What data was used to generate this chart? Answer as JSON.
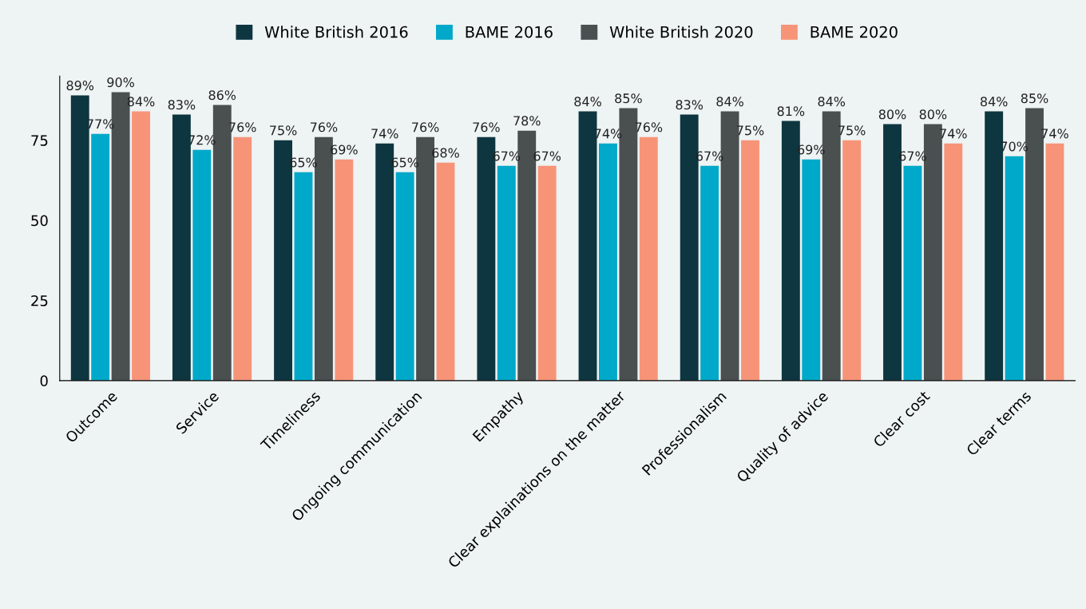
{
  "chart_data": {
    "type": "bar",
    "categories": [
      "Outcome",
      "Service",
      "Timeliness",
      "Ongoing communication",
      "Empathy",
      "Clear explainations on the matter",
      "Professionalism",
      "Quality of advice",
      "Clear cost",
      "Clear terms"
    ],
    "series": [
      {
        "name": "White British 2016",
        "color": "#0e3640",
        "values": [
          89,
          83,
          75,
          74,
          76,
          84,
          83,
          81,
          80,
          84
        ]
      },
      {
        "name": "BAME 2016",
        "color": "#00a9c9",
        "values": [
          77,
          72,
          65,
          65,
          67,
          74,
          67,
          69,
          67,
          70
        ]
      },
      {
        "name": "White British 2020",
        "color": "#4a4f50",
        "values": [
          90,
          86,
          76,
          76,
          78,
          85,
          84,
          84,
          80,
          85
        ]
      },
      {
        "name": "BAME 2020",
        "color": "#f79478",
        "values": [
          84,
          76,
          69,
          68,
          67,
          76,
          75,
          75,
          74,
          74
        ]
      }
    ],
    "value_labels": [
      [
        "89%",
        "83%",
        "75%",
        "74%",
        "76%",
        "84%",
        "83%",
        "81%",
        "80%",
        "84%"
      ],
      [
        "77%",
        "72%",
        "65%",
        "65%",
        "67%",
        "74%",
        "67%",
        "69%",
        "67%",
        "70%"
      ],
      [
        "90%",
        "86%",
        "76%",
        "76%",
        "78%",
        "85%",
        "84%",
        "84%",
        "80%",
        "85%"
      ],
      [
        "84%",
        "76%",
        "69%",
        "68%",
        "67%",
        "76%",
        "75%",
        "75%",
        "74%",
        "74%"
      ]
    ],
    "ylim": [
      0,
      95
    ],
    "yticks": [
      0,
      25,
      50,
      75
    ],
    "grid": false,
    "legend": "top"
  }
}
